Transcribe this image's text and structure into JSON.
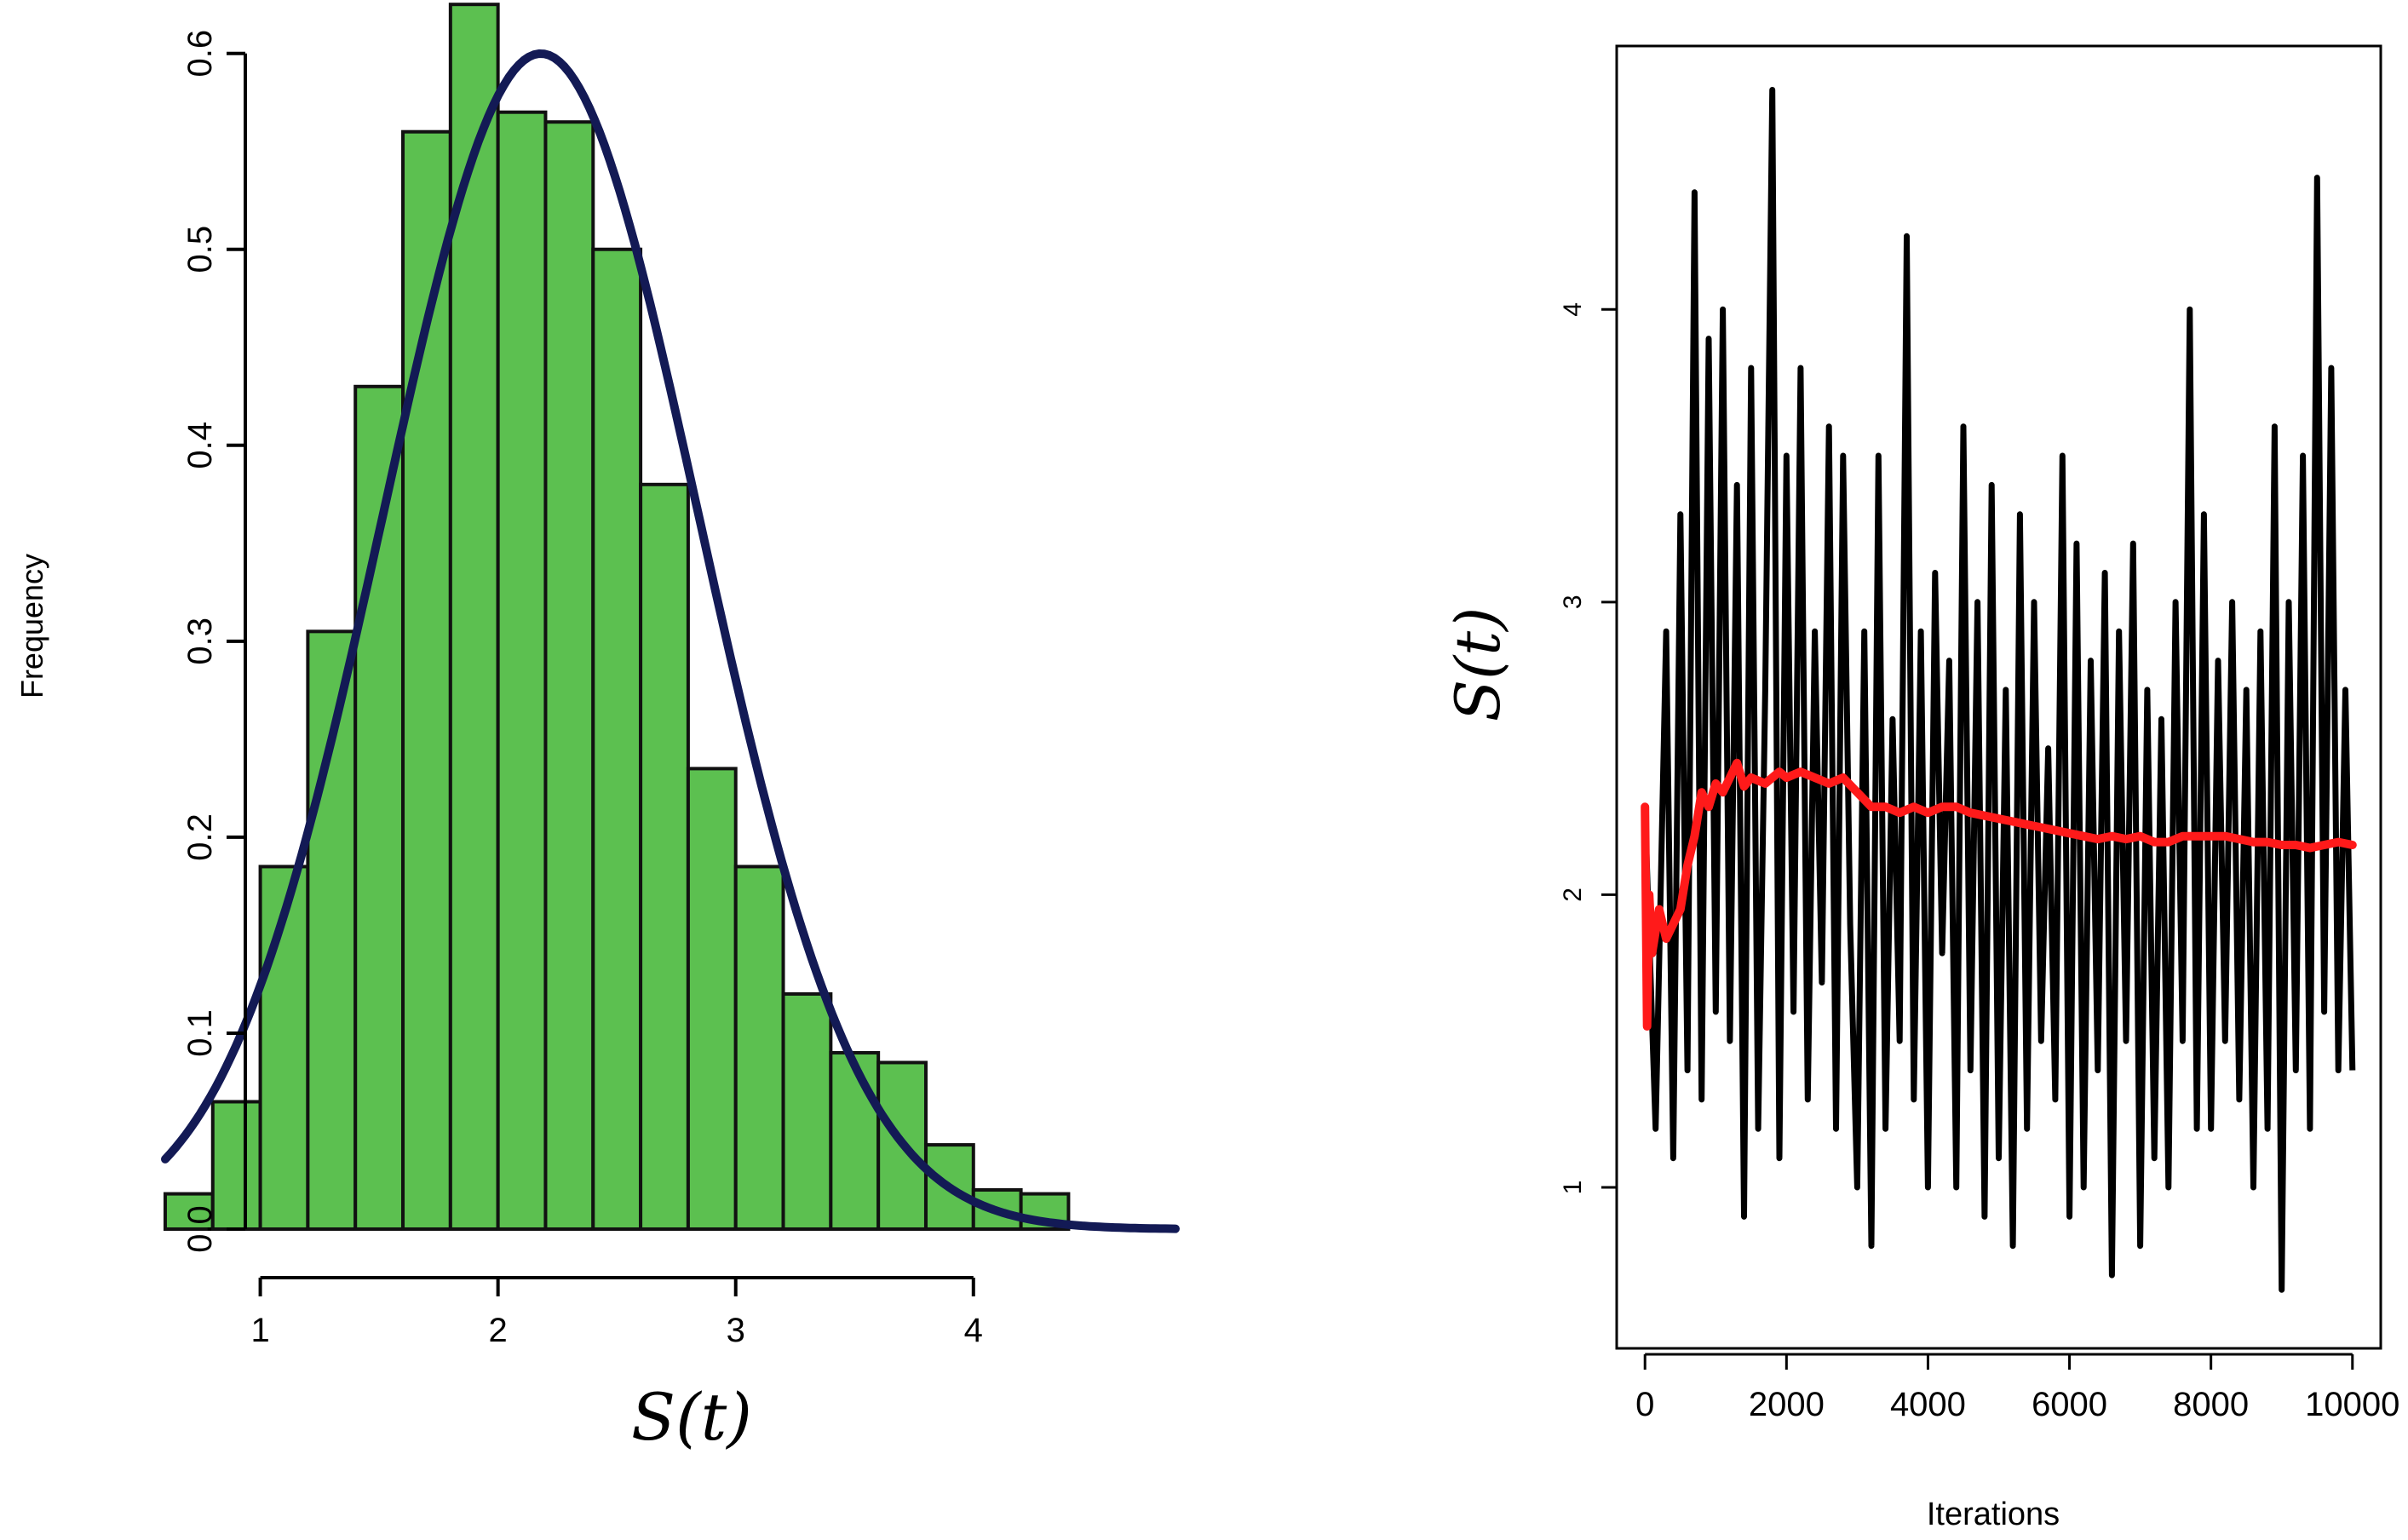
{
  "chart_data": [
    {
      "type": "bar",
      "ylabel": "Frequency",
      "xlabel": "S(t)",
      "xlim": [
        0.55,
        4.85
      ],
      "ylim": [
        0.0,
        0.6
      ],
      "x_ticks": [
        1,
        2,
        3,
        4
      ],
      "y_ticks": [
        0.0,
        0.1,
        0.2,
        0.3,
        0.4,
        0.5,
        0.6
      ],
      "x_tick_labels": [
        "1",
        "2",
        "3",
        "4"
      ],
      "y_tick_labels": [
        "0.0",
        "0.1",
        "0.2",
        "0.3",
        "0.4",
        "0.5",
        "0.6"
      ],
      "bin_edges": [
        0.6,
        0.8,
        1.0,
        1.2,
        1.4,
        1.6,
        1.8,
        2.0,
        2.2,
        2.4,
        2.6,
        2.8,
        3.0,
        3.2,
        3.4,
        3.6,
        3.8,
        4.0,
        4.2,
        4.4
      ],
      "values": [
        0.018,
        0.065,
        0.185,
        0.305,
        0.43,
        0.56,
        0.625,
        0.57,
        0.565,
        0.5,
        0.38,
        0.235,
        0.185,
        0.12,
        0.09,
        0.085,
        0.043,
        0.02,
        0.018
      ],
      "bar_color": "#5cc050",
      "curve": {
        "type": "normal_density",
        "mean": 2.18,
        "sd": 0.665,
        "x_range": [
          0.6,
          4.85
        ],
        "color": "#131a55"
      }
    },
    {
      "type": "line",
      "xlabel": "Iterations",
      "ylabel": "S(t)",
      "xlim": [
        -400,
        10400
      ],
      "ylim": [
        0.45,
        4.9
      ],
      "x_ticks": [
        0,
        2000,
        4000,
        6000,
        8000,
        10000
      ],
      "y_ticks": [
        1,
        2,
        3,
        4
      ],
      "x_tick_labels": [
        "0",
        "2000",
        "4000",
        "6000",
        "8000",
        "10000"
      ],
      "y_tick_labels": [
        "1",
        "2",
        "3",
        "4"
      ],
      "series": [
        {
          "role": "trace",
          "color": "#000000",
          "x": [
            0,
            150,
            300,
            400,
            500,
            600,
            700,
            800,
            900,
            1000,
            1100,
            1200,
            1300,
            1400,
            1500,
            1600,
            1700,
            1800,
            1900,
            2000,
            2100,
            2200,
            2300,
            2400,
            2500,
            2600,
            2700,
            2800,
            2900,
            3000,
            3100,
            3200,
            3300,
            3400,
            3500,
            3600,
            3700,
            3800,
            3900,
            4000,
            4100,
            4200,
            4300,
            4400,
            4500,
            4600,
            4700,
            4800,
            4900,
            5000,
            5100,
            5200,
            5300,
            5400,
            5500,
            5600,
            5700,
            5800,
            5900,
            6000,
            6100,
            6200,
            6300,
            6400,
            6500,
            6600,
            6700,
            6800,
            6900,
            7000,
            7100,
            7200,
            7300,
            7400,
            7500,
            7600,
            7700,
            7800,
            7900,
            8000,
            8100,
            8200,
            8300,
            8400,
            8500,
            8600,
            8700,
            8800,
            8900,
            9000,
            9100,
            9200,
            9300,
            9400,
            9500,
            9600,
            9700,
            9800,
            9900,
            10000
          ],
          "y": [
            2.3,
            1.2,
            2.9,
            1.1,
            3.3,
            1.4,
            4.4,
            1.3,
            3.9,
            1.6,
            4.0,
            1.5,
            3.4,
            0.9,
            3.8,
            1.2,
            2.7,
            4.75,
            1.1,
            3.5,
            1.6,
            3.8,
            1.3,
            2.9,
            1.7,
            3.6,
            1.2,
            3.5,
            1.9,
            1.0,
            2.9,
            0.8,
            3.5,
            1.2,
            2.6,
            1.5,
            4.25,
            1.3,
            2.9,
            1.0,
            3.1,
            1.8,
            2.8,
            1.0,
            3.6,
            1.4,
            3.0,
            0.9,
            3.4,
            1.1,
            2.7,
            0.8,
            3.3,
            1.2,
            3.0,
            1.5,
            2.5,
            1.3,
            3.5,
            0.9,
            3.2,
            1.0,
            2.8,
            1.4,
            3.1,
            0.7,
            2.9,
            1.5,
            3.2,
            0.8,
            2.7,
            1.1,
            2.6,
            1.0,
            3.0,
            1.5,
            4.0,
            1.2,
            3.3,
            1.2,
            2.8,
            1.5,
            3.0,
            1.3,
            2.7,
            1.0,
            2.9,
            1.2,
            3.6,
            0.65,
            3.0,
            1.4,
            3.5,
            1.2,
            4.45,
            1.6,
            3.8,
            1.4,
            2.7,
            1.4
          ]
        },
        {
          "role": "running-mean",
          "color": "#ff1a1a",
          "x": [
            0,
            30,
            60,
            100,
            200,
            300,
            400,
            500,
            600,
            700,
            800,
            900,
            1000,
            1100,
            1200,
            1300,
            1400,
            1500,
            1700,
            1900,
            2000,
            2200,
            2400,
            2600,
            2800,
            3000,
            3200,
            3400,
            3600,
            3800,
            4000,
            4200,
            4400,
            4600,
            4800,
            5000,
            5200,
            5400,
            5600,
            5800,
            6000,
            6200,
            6400,
            6600,
            6800,
            7000,
            7200,
            7400,
            7600,
            7800,
            8000,
            8200,
            8400,
            8600,
            8800,
            9000,
            9200,
            9400,
            9600,
            9800,
            10000
          ],
          "y": [
            2.3,
            1.55,
            2.0,
            1.8,
            1.95,
            1.85,
            1.9,
            1.95,
            2.1,
            2.2,
            2.35,
            2.3,
            2.38,
            2.35,
            2.4,
            2.45,
            2.37,
            2.4,
            2.38,
            2.42,
            2.4,
            2.42,
            2.4,
            2.38,
            2.4,
            2.35,
            2.3,
            2.3,
            2.28,
            2.3,
            2.28,
            2.3,
            2.3,
            2.28,
            2.27,
            2.26,
            2.25,
            2.24,
            2.23,
            2.22,
            2.21,
            2.2,
            2.19,
            2.2,
            2.19,
            2.2,
            2.18,
            2.18,
            2.2,
            2.2,
            2.2,
            2.2,
            2.19,
            2.18,
            2.18,
            2.17,
            2.17,
            2.16,
            2.17,
            2.18,
            2.17
          ]
        }
      ]
    }
  ]
}
